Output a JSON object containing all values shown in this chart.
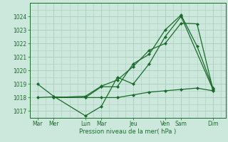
{
  "background_color": "#cce8dc",
  "grid_color": "#aaccbb",
  "line_color": "#1a6b2a",
  "xtick_labels": [
    "Mar",
    "Mer",
    "Lun",
    "Mar",
    "Jeu",
    "Ven",
    "Sam",
    "Dim"
  ],
  "xtick_positions": [
    0,
    1,
    3,
    4,
    6,
    8,
    9,
    11
  ],
  "xlabel": "Pression niveau de la mer( hPa )",
  "ylim": [
    1016.5,
    1025.0
  ],
  "yticks": [
    1017,
    1018,
    1019,
    1020,
    1021,
    1022,
    1023,
    1024
  ],
  "xlim": [
    -0.5,
    11.8
  ],
  "series": [
    {
      "x": [
        0,
        1,
        3,
        4,
        5,
        6,
        7,
        8,
        9,
        11
      ],
      "y": [
        1019.0,
        1018.1,
        1016.65,
        1017.35,
        1019.5,
        1019.0,
        1020.5,
        1022.5,
        1024.0,
        1018.6
      ]
    },
    {
      "x": [
        0,
        1,
        3,
        4,
        5,
        6,
        7,
        8,
        9,
        10,
        11
      ],
      "y": [
        1018.0,
        1018.05,
        1018.0,
        1018.8,
        1018.8,
        1020.5,
        1021.2,
        1023.0,
        1024.1,
        1021.8,
        1018.7
      ]
    },
    {
      "x": [
        1,
        3,
        4,
        5,
        6,
        7,
        8,
        9,
        10,
        11
      ],
      "y": [
        1018.0,
        1018.1,
        1018.85,
        1019.3,
        1020.3,
        1021.5,
        1022.0,
        1023.5,
        1023.45,
        1018.6
      ]
    },
    {
      "x": [
        1,
        3,
        4,
        5,
        6,
        7,
        8,
        9,
        10,
        11
      ],
      "y": [
        1018.0,
        1018.0,
        1018.0,
        1018.0,
        1018.2,
        1018.4,
        1018.5,
        1018.6,
        1018.7,
        1018.5
      ]
    }
  ]
}
